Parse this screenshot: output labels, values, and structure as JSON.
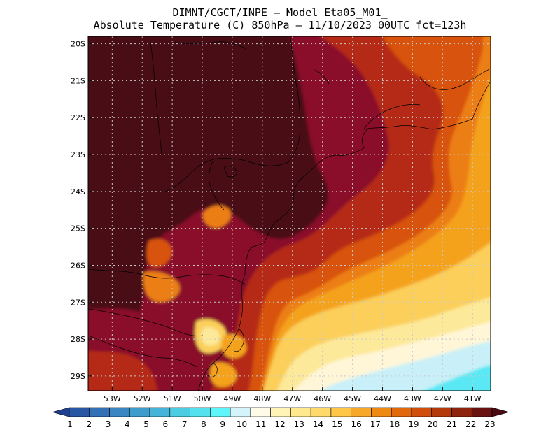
{
  "title": {
    "line1": "DIMNT/CGCT/INPE –  Model Eta05_M01_",
    "line2": "Absolute Temperature (C) 850hPa –  11/10/2023 00UTC fct=123h"
  },
  "map": {
    "lat_labels": [
      "20S",
      "21S",
      "22S",
      "23S",
      "24S",
      "25S",
      "26S",
      "27S",
      "28S",
      "29S"
    ],
    "lon_labels": [
      "53W",
      "52W",
      "51W",
      "50W",
      "49W",
      "48W",
      "47W",
      "46W",
      "45W",
      "44W",
      "43W",
      "42W",
      "41W"
    ],
    "extent": {
      "lon_min": -53.8,
      "lon_max": -40.4,
      "lat_min": -29.4,
      "lat_max": -19.8
    }
  },
  "colorbar": {
    "labels": [
      "1",
      "2",
      "3",
      "4",
      "5",
      "6",
      "7",
      "8",
      "9",
      "10",
      "11",
      "12",
      "13",
      "14",
      "15",
      "16",
      "17",
      "18",
      "19",
      "20",
      "21",
      "22",
      "23"
    ],
    "colors": [
      "#1f3f8f",
      "#2a57a4",
      "#3370b6",
      "#3a86c2",
      "#3f9dcd",
      "#46b4d8",
      "#4ccde2",
      "#55e2ee",
      "#5ef5fb",
      "#d2f4fa",
      "#fffbe8",
      "#fff4b5",
      "#ffe98c",
      "#ffd96a",
      "#ffc64a",
      "#f7a828",
      "#ee8a13",
      "#e2680c",
      "#cf4f0b",
      "#b43a0c",
      "#8f240e",
      "#6a1111",
      "#4a0a14"
    ]
  },
  "palette": {
    "dark_brown": "#4a0a12",
    "crimson": "#8a0f2a",
    "red_brown": "#b52c12",
    "orange_red": "#d8520e",
    "orange": "#ec7e12",
    "orange_light": "#f4a21e",
    "yellow": "#fbcf5a",
    "pale_yellow": "#fde99a",
    "cream": "#fff6d8",
    "pale_cyan": "#c9f0f8",
    "cyan": "#5ae8f4",
    "grid": "#c9c9c9",
    "coast": "#000000"
  }
}
